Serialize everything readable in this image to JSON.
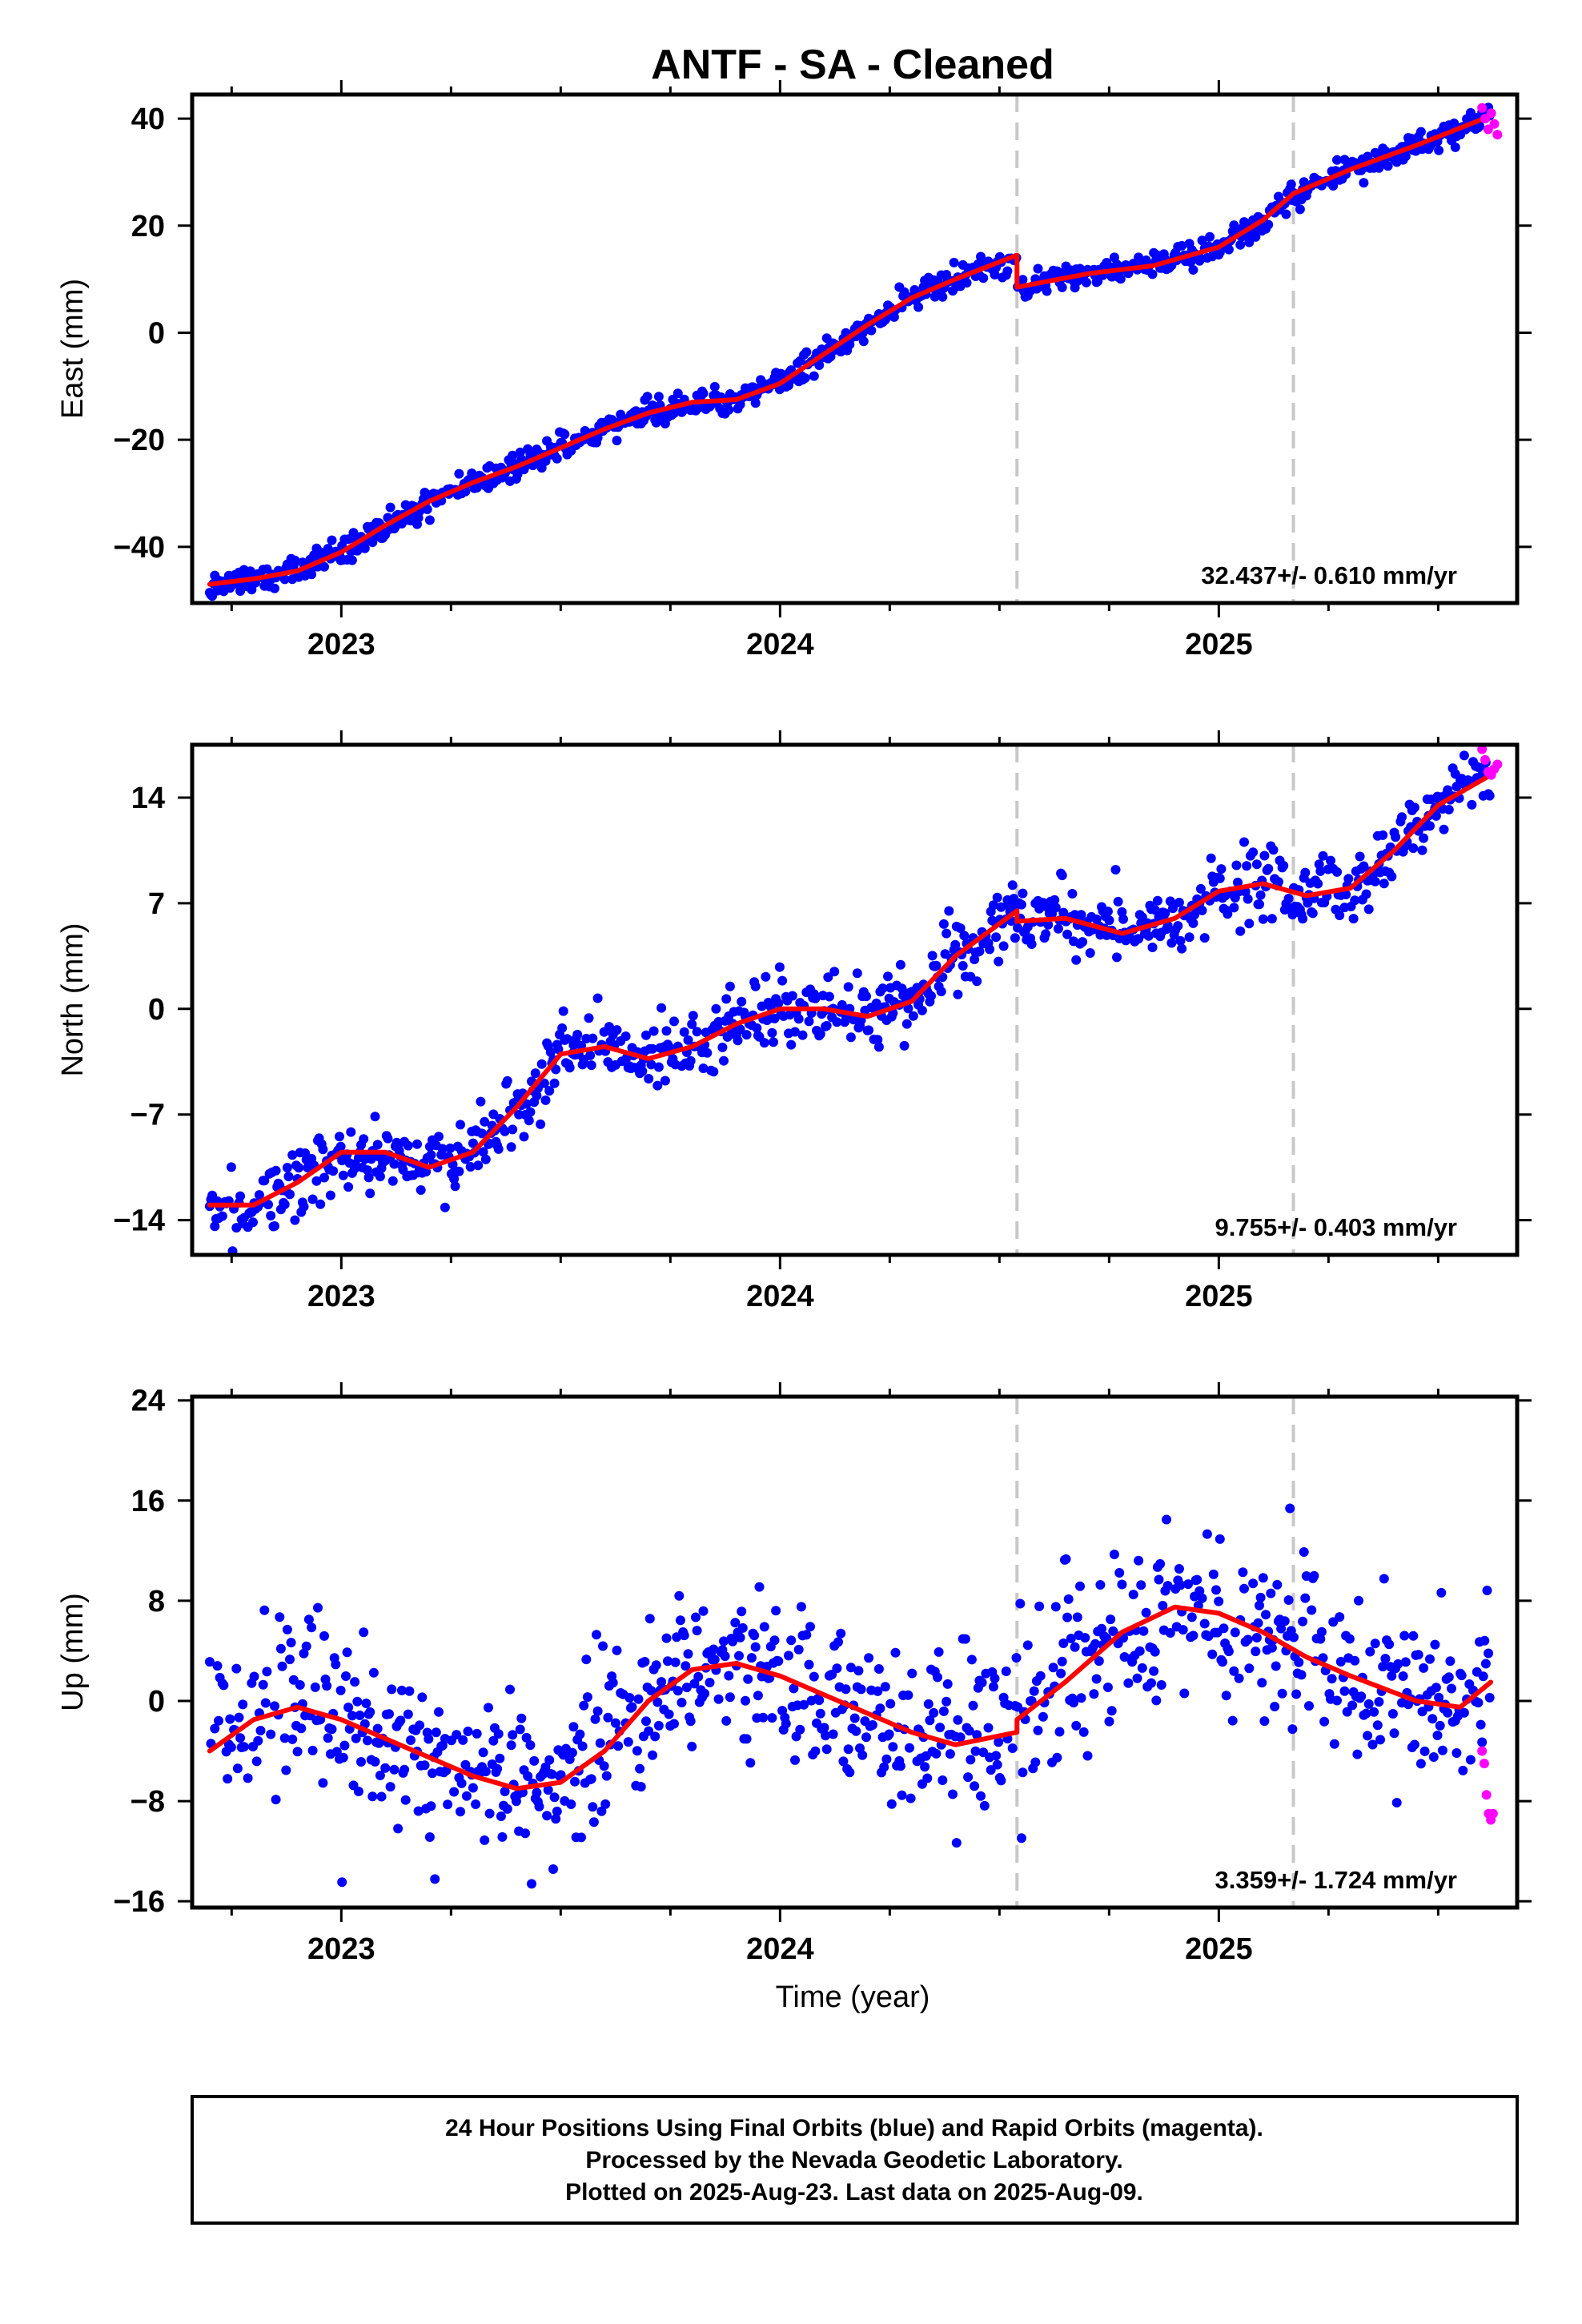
{
  "chart_data": {
    "type": "scatter",
    "title": "ANTF  - SA - Cleaned",
    "x_axis": {
      "label": "Time (year)",
      "range": [
        2022.66,
        2025.68
      ],
      "major_ticks": [
        2023,
        2024,
        2025
      ],
      "tick_labels": [
        "2023",
        "2024",
        "2025"
      ],
      "minor_tick_step": 0.25
    },
    "event_markers": {
      "color": "#c8c8c8",
      "style": "dashed",
      "x": [
        2024.54,
        2025.17
      ]
    },
    "series_colors": {
      "final_orbits": "#0000ff",
      "rapid_orbits": "#ff00ff",
      "model_fit": "#ff0000"
    },
    "panels": [
      {
        "name": "east",
        "ylabel": "East (mm)",
        "ylim": [
          -50.5,
          44.5
        ],
        "yticks": [
          -40,
          -20,
          0,
          20,
          40
        ],
        "ytick_labels": [
          "−40",
          "−20",
          "0",
          "20",
          "40"
        ],
        "rate_text": "32.437+/- 0.610 mm/yr",
        "scatter_noise_mm": 1.2,
        "fit_segments": [
          {
            "x": [
              2022.7,
              2022.8,
              2022.9,
              2023.0,
              2023.1,
              2023.2,
              2023.3,
              2023.4,
              2023.5,
              2023.6,
              2023.7,
              2023.8,
              2023.9,
              2024.0,
              2024.1,
              2024.2,
              2024.3,
              2024.4,
              2024.54
            ],
            "y": [
              -47,
              -46,
              -44.5,
              -41,
              -36,
              -31.5,
              -28,
              -25,
              -21.5,
              -18,
              -15,
              -13,
              -12.5,
              -9.5,
              -4,
              1.5,
              6.5,
              10,
              14.5
            ]
          },
          {
            "x": [
              2024.54,
              2024.7,
              2024.85,
              2025.0,
              2025.1,
              2025.17,
              2025.3,
              2025.45,
              2025.62
            ],
            "y": [
              8.5,
              11,
              12.5,
              16,
              21,
              26,
              30.5,
              35,
              40.5
            ]
          }
        ],
        "rapid_points": {
          "x": [
            2025.6,
            2025.607,
            2025.614,
            2025.621,
            2025.628,
            2025.635
          ],
          "y": [
            42,
            40,
            38,
            41,
            39,
            37
          ]
        }
      },
      {
        "name": "north",
        "ylabel": "North (mm)",
        "ylim": [
          -16.3,
          17.5
        ],
        "yticks": [
          -14,
          -7,
          0,
          7,
          14
        ],
        "ytick_labels": [
          "−14",
          "−7",
          "0",
          "7",
          "14"
        ],
        "rate_text": "9.755+/- 0.403 mm/yr",
        "scatter_noise_mm": 1.1,
        "fit_segments": [
          {
            "x": [
              2022.7,
              2022.8,
              2022.9,
              2023.0,
              2023.1,
              2023.2,
              2023.3,
              2023.4,
              2023.5,
              2023.6,
              2023.7,
              2023.8,
              2023.9,
              2024.0,
              2024.1,
              2024.2,
              2024.3,
              2024.4,
              2024.54
            ],
            "y": [
              -13,
              -13,
              -11.5,
              -9.5,
              -9.5,
              -10.5,
              -9.5,
              -6.5,
              -3,
              -2.5,
              -3.3,
              -2.5,
              -1,
              0,
              0,
              -0.5,
              0.5,
              3.5,
              6.5
            ]
          },
          {
            "x": [
              2024.54,
              2024.65,
              2024.78,
              2024.9,
              2025.0,
              2025.1,
              2025.2,
              2025.3,
              2025.4,
              2025.5,
              2025.62
            ],
            "y": [
              5.8,
              6,
              5,
              6,
              7.8,
              8.3,
              7.5,
              8,
              10.5,
              13.5,
              15.5
            ]
          }
        ],
        "rapid_points": {
          "x": [
            2025.6,
            2025.607,
            2025.614,
            2025.621,
            2025.628,
            2025.635
          ],
          "y": [
            17.2,
            16.5,
            15.7,
            15.5,
            15.9,
            16.2
          ]
        }
      },
      {
        "name": "up",
        "ylabel": "Up (mm)",
        "ylim": [
          -16.5,
          24.3
        ],
        "yticks": [
          -16,
          -8,
          0,
          8,
          16,
          24
        ],
        "ytick_labels": [
          "−16",
          "−8",
          "0",
          "8",
          "16",
          "24"
        ],
        "rate_text": "3.359+/- 1.724 mm/yr",
        "scatter_noise_mm": 3.4,
        "fit_segments": [
          {
            "x": [
              2022.7,
              2022.8,
              2022.9,
              2023.0,
              2023.1,
              2023.2,
              2023.3,
              2023.4,
              2023.5,
              2023.6,
              2023.7,
              2023.8,
              2023.9,
              2024.0,
              2024.1,
              2024.2,
              2024.3,
              2024.4,
              2024.54
            ],
            "y": [
              -4,
              -1.5,
              -0.5,
              -1.5,
              -3,
              -4.5,
              -6,
              -7,
              -6.5,
              -4,
              0,
              2.5,
              3,
              2,
              0.5,
              -1,
              -2.5,
              -3.5,
              -2.5
            ]
          },
          {
            "x": [
              2024.54,
              2024.65,
              2024.78,
              2024.9,
              2025.0,
              2025.1,
              2025.2,
              2025.3,
              2025.45,
              2025.55,
              2025.62
            ],
            "y": [
              -1.5,
              1.5,
              5.5,
              7.5,
              7,
              5.5,
              3.5,
              2,
              0,
              -0.5,
              1.5
            ]
          }
        ],
        "rapid_points": {
          "x": [
            2025.6,
            2025.605,
            2025.61,
            2025.615,
            2025.62,
            2025.625
          ],
          "y": [
            -4,
            -5,
            -7.5,
            -9,
            -9.5,
            -9
          ]
        }
      }
    ]
  },
  "footer": {
    "line1": "24 Hour Positions Using Final Orbits (blue) and Rapid Orbits (magenta).",
    "line2": "Processed by the Nevada Geodetic Laboratory.",
    "line3": "Plotted on 2025-Aug-23. Last data on 2025-Aug-09."
  }
}
